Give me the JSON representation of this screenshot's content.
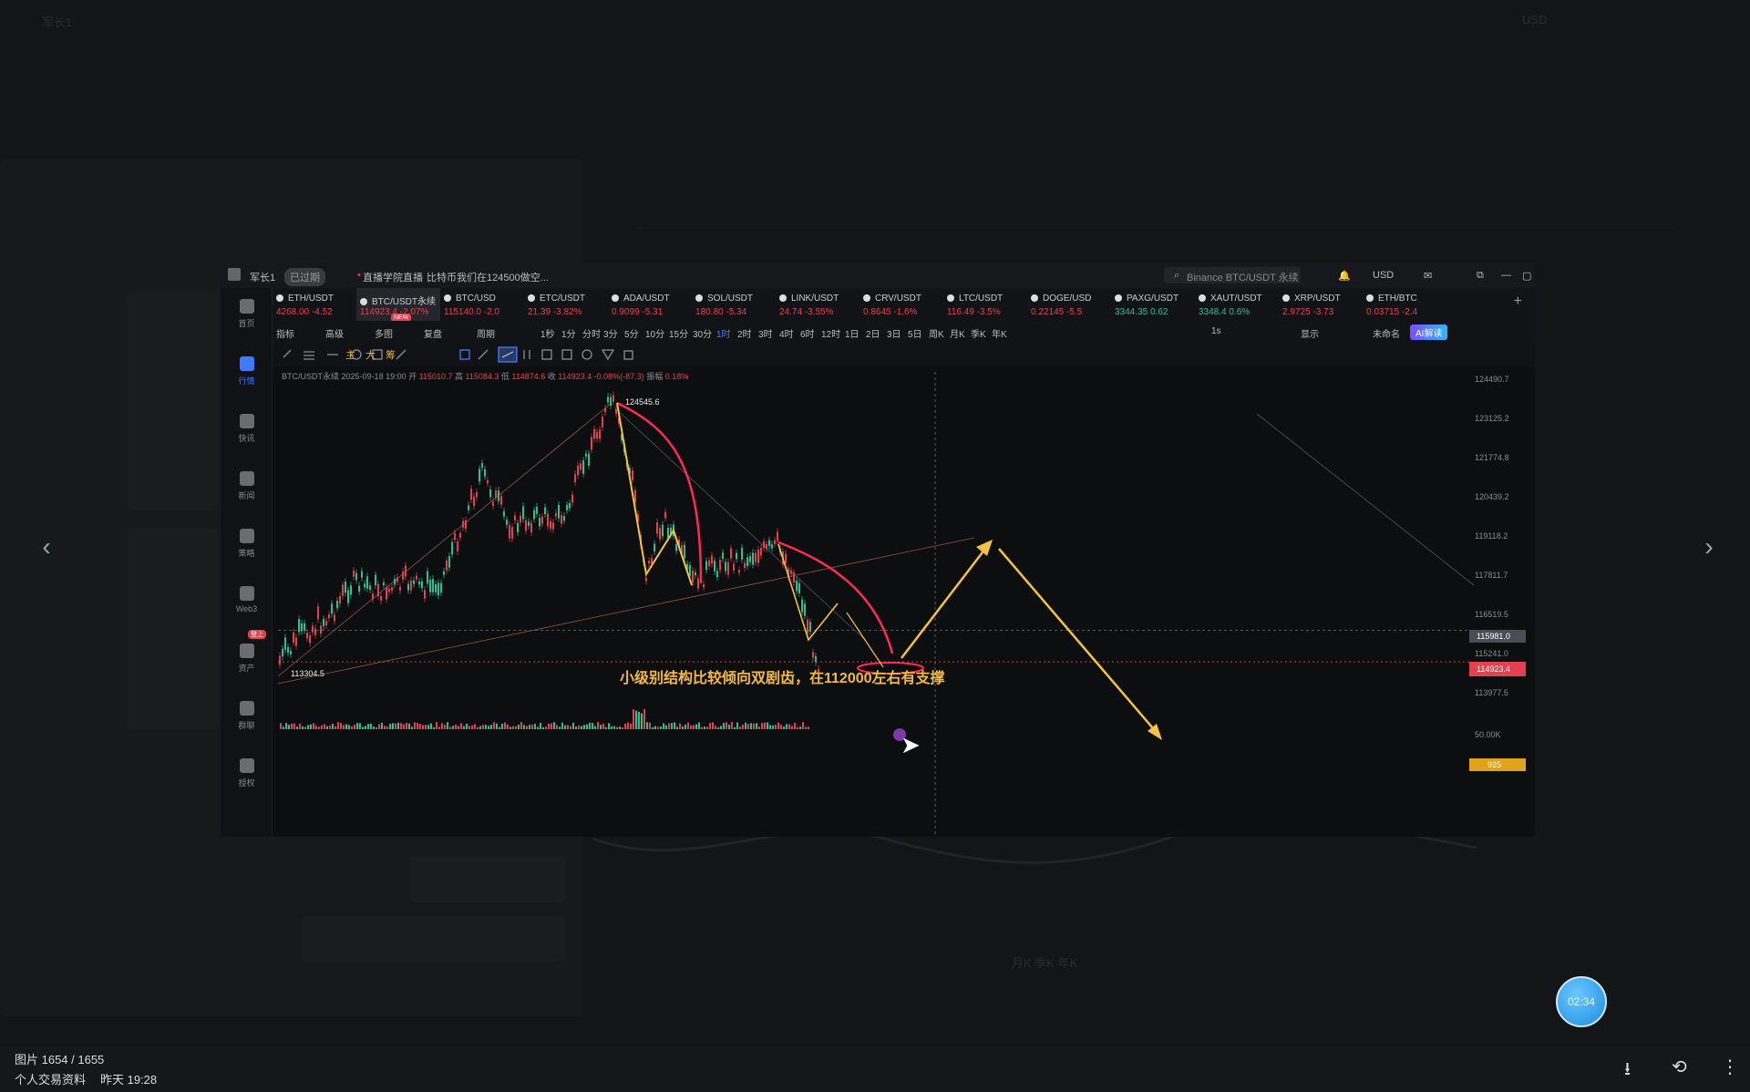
{
  "background": {
    "top_left": "军长1",
    "right_label": "USD",
    "bottom_row": "月K 季K 年K"
  },
  "viewer": {
    "title": "军长1",
    "status_badge": "已过期",
    "live_label": "直播学院直播",
    "marquee": "比特币我们在124500做空...",
    "search_placeholder": "Binance BTC/USDT 永续",
    "currency": "USD",
    "tabs": [
      {
        "name": "ETH/USDT",
        "price": "4268.00",
        "change": "-4.52",
        "color": "red"
      },
      {
        "name": "BTC/USDT永续",
        "price": "114923.4",
        "change": "-2.07%",
        "color": "red",
        "active": true,
        "badge": "NEW"
      },
      {
        "name": "BTC/USD",
        "price": "115140.0",
        "change": "-2.0",
        "color": "red"
      },
      {
        "name": "ETC/USDT",
        "price": "21.39",
        "change": "-3.82%",
        "color": "red"
      },
      {
        "name": "ADA/USDT",
        "price": "0.9099",
        "change": "-5.31",
        "color": "red"
      },
      {
        "name": "SOL/USDT",
        "price": "180.80",
        "change": "-5.34",
        "color": "red"
      },
      {
        "name": "LINK/USDT",
        "price": "24.74",
        "change": "-3.55%",
        "color": "red"
      },
      {
        "name": "CRV/USDT",
        "price": "0.8645",
        "change": "-1.6%",
        "color": "red"
      },
      {
        "name": "LTC/USDT",
        "price": "116.49",
        "change": "-3.5%",
        "color": "red"
      },
      {
        "name": "DOGE/USD",
        "price": "0.22145",
        "change": "-5.5",
        "color": "red"
      },
      {
        "name": "PAXG/USDT",
        "price": "3344.35",
        "change": "0.62",
        "color": "green"
      },
      {
        "name": "XAUT/USDT",
        "price": "3348.4",
        "change": "0.6%",
        "color": "green"
      },
      {
        "name": "XRP/USDT",
        "price": "2.9725",
        "change": "-3.73",
        "color": "red"
      },
      {
        "name": "ETH/BTC",
        "price": "0.03715",
        "change": "-2.4",
        "color": "red"
      }
    ],
    "period_tools": [
      "指标",
      "高级",
      "多图",
      "复盘",
      "周期"
    ],
    "periods": [
      "1秒",
      "1分",
      "分时",
      "3分",
      "5分",
      "10分",
      "15分",
      "30分",
      "1时",
      "2时",
      "3时",
      "4时",
      "6时",
      "12时",
      "1日",
      "2日",
      "3日",
      "5日",
      "周K",
      "月K",
      "季K",
      "年K"
    ],
    "active_period": "1时",
    "right_tools": {
      "interval": "1s",
      "display": "显示",
      "unnamed": "未命名",
      "ai": "AI解读"
    },
    "sidebar": [
      "首页",
      "行情",
      "快讯",
      "新闻",
      "策略",
      "Web3",
      "资产",
      "群聊",
      "授权"
    ],
    "sidebar_active": "行情",
    "sidebar_badge": "登上",
    "ohlc": {
      "symbol": "BTC/USDT永续",
      "date": "2025-09-18 19:00",
      "open": "115010.7",
      "high": "115084.3",
      "low": "114874.6",
      "close": "114923.4",
      "chg": "-0.08%(-87.3)",
      "amp": "0.18%"
    },
    "price_ticks": [
      "124490.7",
      "123125.2",
      "121774.8",
      "120439.2",
      "119118.2",
      "117811.7",
      "116519.5",
      "115241.0",
      "113977.5"
    ],
    "current_price": "114923.4",
    "crosshair_price": "115981.0",
    "vol_tick": "50.00K",
    "vol_badge": "925",
    "high_label": "124545.6",
    "low_label": "113304.5",
    "annotation": "小级别结构比较倾向双剧齿，在112000左右有支撑",
    "annotation_color": "#f5b93c",
    "curve_color": "#ff2a55",
    "arrow_color": "#f5c241"
  },
  "footer": {
    "counter": "图片 1654 / 1655",
    "caption": "个人交易资料",
    "time": "昨天 19:28"
  },
  "timer": "02:34",
  "chart_data": {
    "type": "candlestick",
    "symbol": "BTC/USDT永续",
    "timeframe": "1时",
    "ylim": [
      113304.5,
      124545.6
    ],
    "high": 124545.6,
    "low": 113304.5,
    "last": 114923.4
  }
}
